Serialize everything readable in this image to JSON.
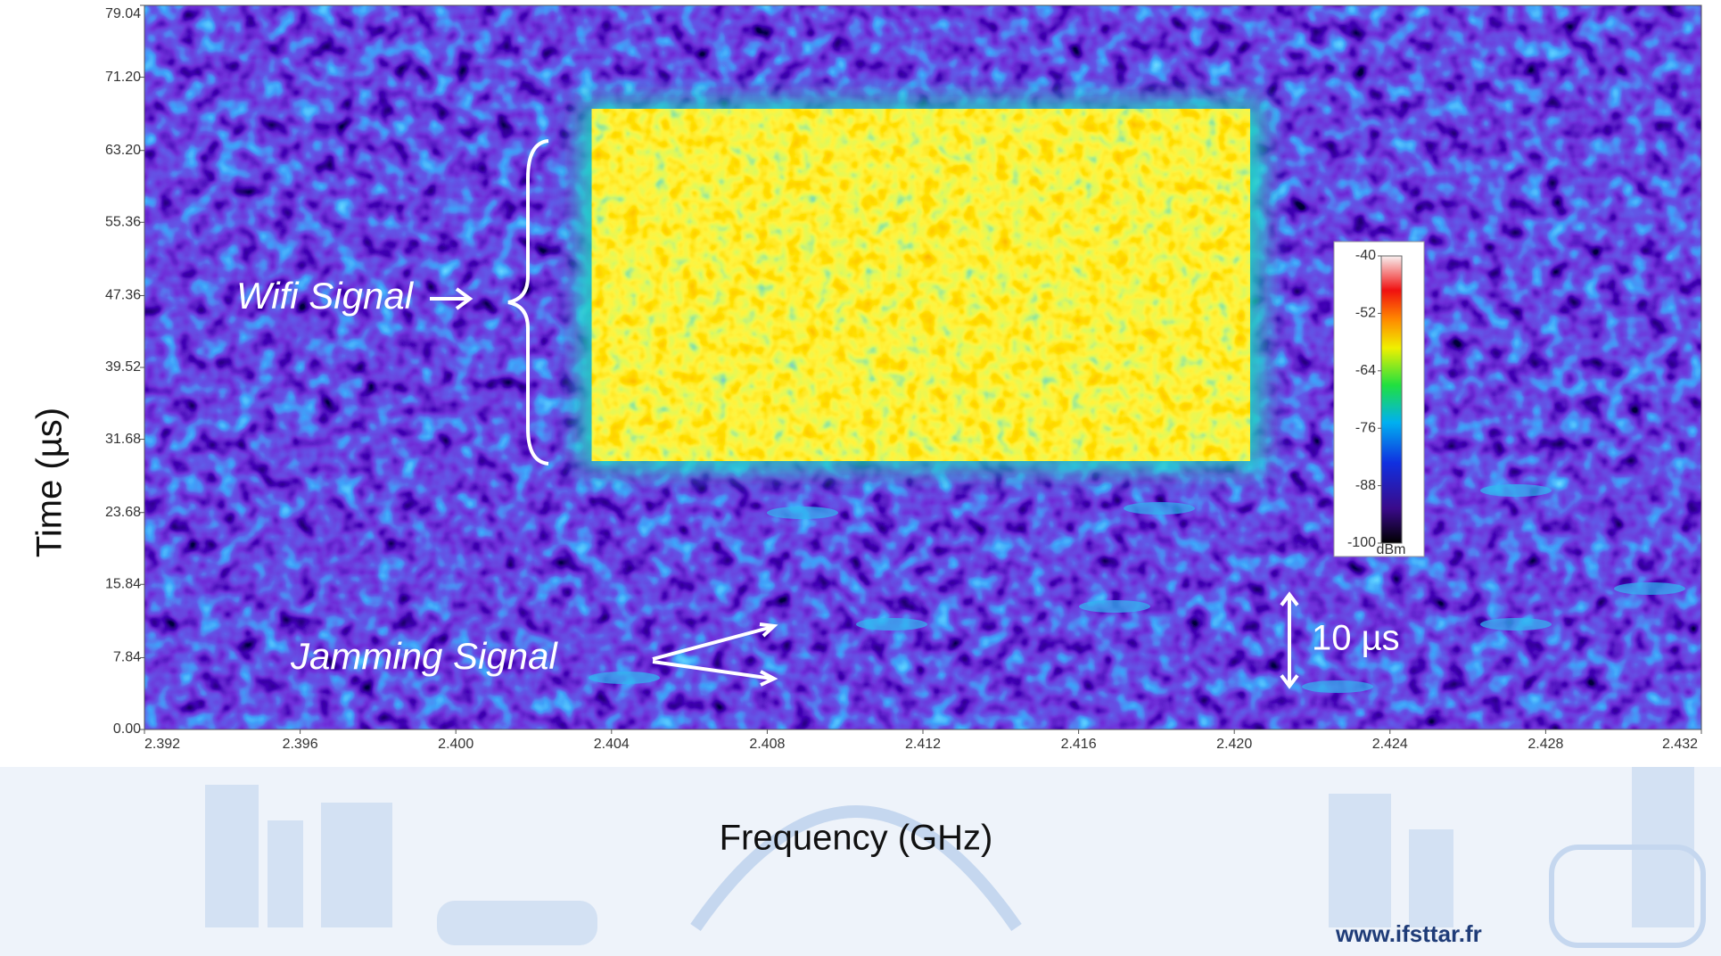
{
  "chart_data": {
    "type": "spectrogram",
    "x_label": "Frequency (GHz)",
    "y_label": "Time (µs)",
    "xlim": [
      2.392,
      2.432
    ],
    "ylim": [
      0,
      79.04
    ],
    "xticks": [
      2.392,
      2.396,
      {
        "value": 2.4,
        "label": "2.400"
      },
      2.404,
      2.408,
      2.412,
      2.416,
      {
        "value": 2.42,
        "label": "2.420"
      },
      2.424,
      2.428,
      2.432
    ],
    "yticks": [
      {
        "value": 0,
        "label": "0.00"
      },
      7.84,
      15.84,
      23.68,
      31.68,
      39.52,
      47.36,
      55.36,
      {
        "value": 63.2,
        "label": "63.20"
      },
      {
        "value": 71.2,
        "label": "71.20"
      },
      79.04
    ],
    "colorbar": {
      "unit": "dBm",
      "zlim": [
        -100,
        -40
      ],
      "ticks": [
        -40,
        -52,
        -64,
        -76,
        -88,
        -100
      ]
    },
    "signal_region": {
      "xlim": [
        2.4035,
        2.4204
      ],
      "ylim": [
        29.3,
        67.7
      ]
    },
    "annotations": {
      "wifi": "Wifi Signal",
      "jamming": "Jamming Signal",
      "scale": {
        "text": "10 µs",
        "span": 10
      }
    },
    "footer": "www.ifsttar.fr"
  }
}
